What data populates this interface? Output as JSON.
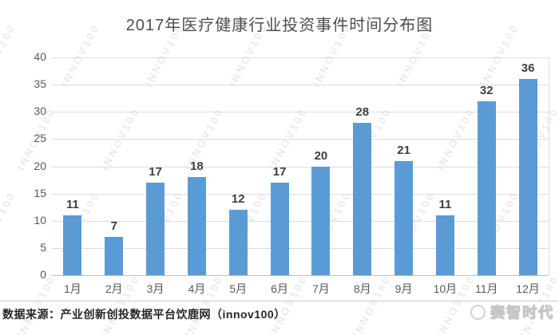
{
  "chart_data": {
    "type": "bar",
    "title": "2017年医疗健康行业投资事件时间分布图",
    "categories": [
      "1月",
      "2月",
      "3月",
      "4月",
      "5月",
      "6月",
      "7月",
      "8月",
      "9月",
      "10月",
      "11月",
      "12月"
    ],
    "values": [
      11,
      7,
      17,
      18,
      12,
      17,
      20,
      28,
      21,
      11,
      32,
      36
    ],
    "xlabel": "",
    "ylabel": "",
    "ylim": [
      0,
      40
    ],
    "yticks": [
      0,
      5,
      10,
      15,
      20,
      25,
      30,
      35,
      40
    ],
    "grid": true,
    "legend": "none",
    "bar_color": "#5B9BD5",
    "value_label_color": "#3F3F3F",
    "axis_label_color": "#595959",
    "gridline_color": "#DCDCDC"
  },
  "footer": {
    "source": "数据来源：产业创新创投数据平台饮鹿网（innov100）",
    "brand": "赛智时代"
  },
  "watermark": {
    "text": "INNOV100"
  }
}
